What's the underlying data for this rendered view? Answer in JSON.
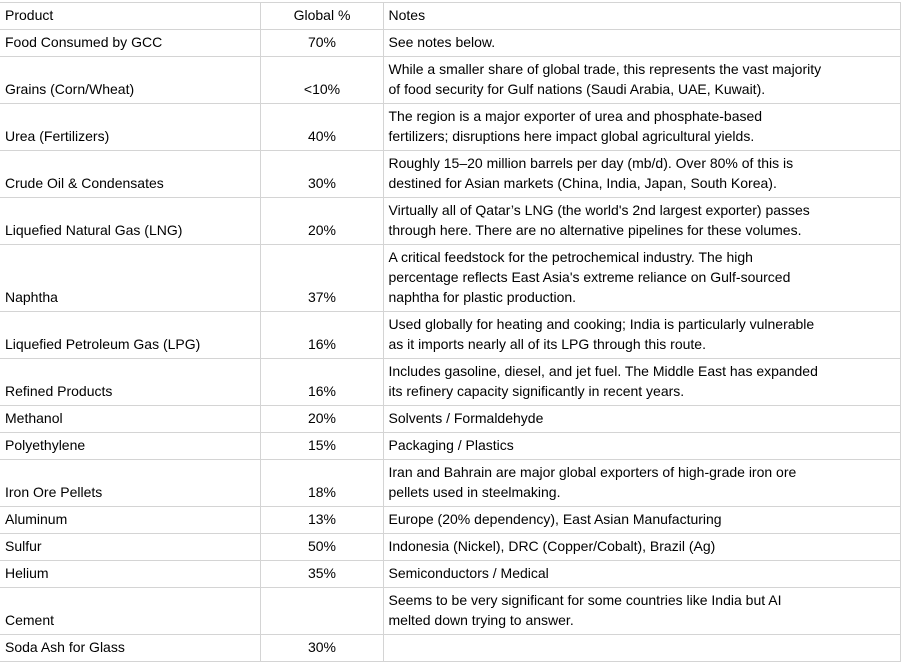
{
  "colors": {
    "gridline": "#d4d4d4",
    "text": "#000000",
    "background": "#ffffff"
  },
  "table": {
    "columns": [
      {
        "label": "Product"
      },
      {
        "label": "Global %"
      },
      {
        "label": "Notes"
      }
    ],
    "rows": [
      {
        "product": "Food Consumed by GCC",
        "global_pct": "70%",
        "notes": "See notes below."
      },
      {
        "product": "Grains (Corn/Wheat)",
        "global_pct": "<10%",
        "notes": "While a smaller share of global trade, this represents the vast majority\nof food security for Gulf nations (Saudi Arabia, UAE, Kuwait)."
      },
      {
        "product": "Urea (Fertilizers)",
        "global_pct": "40%",
        "notes": "The region is a major exporter of urea and phosphate-based\nfertilizers; disruptions here impact global agricultural yields."
      },
      {
        "product": "Crude Oil & Condensates",
        "global_pct": "30%",
        "notes": "Roughly 15–20 million barrels per day (mb/d). Over 80% of this is\ndestined for Asian markets (China, India, Japan, South Korea)."
      },
      {
        "product": "Liquefied Natural Gas (LNG)",
        "global_pct": "20%",
        "notes": "Virtually all of Qatar’s LNG (the world's 2nd largest exporter) passes\nthrough here. There are no alternative pipelines for these volumes."
      },
      {
        "product": "Naphtha",
        "global_pct": "37%",
        "notes": "A critical feedstock for the petrochemical industry. The high\npercentage reflects East Asia's extreme reliance on Gulf-sourced\nnaphtha for plastic production."
      },
      {
        "product": "Liquefied Petroleum Gas (LPG)",
        "global_pct": "16%",
        "notes": "Used globally for heating and cooking; India is particularly vulnerable\nas it imports nearly all of its LPG through this route."
      },
      {
        "product": "Refined Products",
        "global_pct": "16%",
        "notes": "Includes gasoline, diesel, and jet fuel. The Middle East has expanded\nits refinery capacity significantly in recent years."
      },
      {
        "product": "Methanol",
        "global_pct": "20%",
        "notes": "Solvents / Formaldehyde"
      },
      {
        "product": "Polyethylene",
        "global_pct": "15%",
        "notes": "Packaging / Plastics"
      },
      {
        "product": "Iron Ore Pellets",
        "global_pct": "18%",
        "notes": "Iran and Bahrain are major global exporters of high-grade iron ore\npellets used in steelmaking."
      },
      {
        "product": "Aluminum",
        "global_pct": "13%",
        "notes": "Europe (20% dependency), East Asian Manufacturing"
      },
      {
        "product": "Sulfur",
        "global_pct": "50%",
        "notes": "Indonesia (Nickel), DRC (Copper/Cobalt), Brazil (Ag)"
      },
      {
        "product": "Helium",
        "global_pct": "35%",
        "notes": "Semiconductors / Medical"
      },
      {
        "product": "Cement",
        "global_pct": "",
        "notes": "Seems to be very significant for some countries like India but AI\nmelted down trying to answer."
      },
      {
        "product": "Soda Ash for Glass",
        "global_pct": "30%",
        "notes": ""
      }
    ]
  }
}
